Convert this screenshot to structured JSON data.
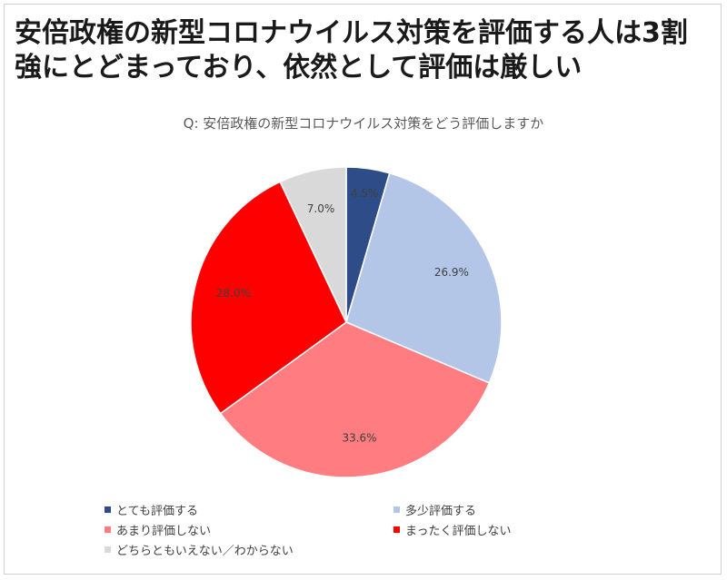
{
  "headline": "安倍政権の新型コロナウイルス対策を評価する人は3割強にとどまっており、依然として評価は厳しい",
  "chart_data": {
    "type": "pie",
    "title": "Q: 安倍政権の新型コロナウイルス対策をどう評価しますか",
    "legend_position": "bottom",
    "slices": [
      {
        "label": "とても評価する",
        "value": 4.5,
        "display": "4.5%",
        "color": "#2e4c87"
      },
      {
        "label": "多少評価する",
        "value": 26.9,
        "display": "26.9%",
        "color": "#b4c6e7"
      },
      {
        "label": "あまり評価しない",
        "value": 33.6,
        "display": "33.6%",
        "color": "#ff7c80"
      },
      {
        "label": "まったく評価しない",
        "value": 28.0,
        "display": "28.0%",
        "color": "#ff0000"
      },
      {
        "label": "どちらともいえない／わからない",
        "value": 7.0,
        "display": "7.0%",
        "color": "#d9d9d9"
      }
    ]
  }
}
